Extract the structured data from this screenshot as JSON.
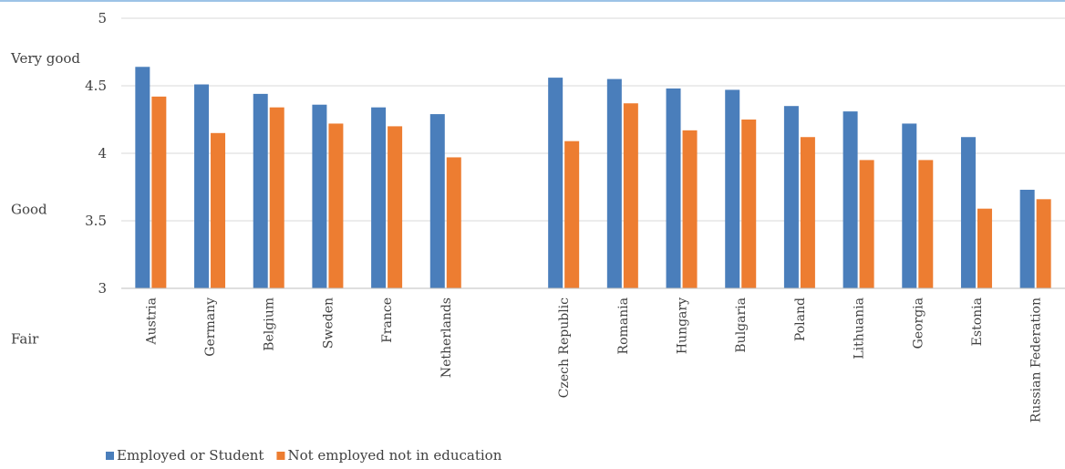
{
  "chart_data": {
    "type": "bar",
    "title": "",
    "xlabel": "",
    "ylabel": "",
    "ylim": [
      3,
      5
    ],
    "yticks": [
      3,
      3.5,
      4,
      4.5,
      5
    ],
    "ytick_labels": [
      "3",
      "3.5",
      "4",
      "4.5",
      "5"
    ],
    "grid": true,
    "legend_position": "bottom-left",
    "categories": [
      "Austria",
      "Germany",
      "Belgium",
      "Sweden",
      "France",
      "Netherlands",
      "",
      "Czech Republic",
      "Romania",
      "Hungary",
      "Bulgaria",
      "Poland",
      "Lithuania",
      "Georgia",
      "Estonia",
      "Russian Federation"
    ],
    "series": [
      {
        "name": "Employed or Student",
        "color": "#4a7ebb",
        "values": [
          4.64,
          4.51,
          4.44,
          4.36,
          4.34,
          4.29,
          null,
          4.56,
          4.55,
          4.48,
          4.47,
          4.35,
          4.31,
          4.22,
          4.12,
          3.73
        ]
      },
      {
        "name": "Not employed not in education",
        "color": "#ed7d31",
        "values": [
          4.42,
          4.15,
          4.34,
          4.22,
          4.2,
          3.97,
          null,
          4.09,
          4.37,
          4.17,
          4.25,
          4.12,
          3.95,
          3.95,
          3.59,
          3.66
        ]
      }
    ],
    "annotations": [
      {
        "text": "Very good",
        "at_value": 4.67
      },
      {
        "text": "Good",
        "at_value": 3.55
      },
      {
        "text": "Fair",
        "at_value": 2.59
      }
    ]
  }
}
